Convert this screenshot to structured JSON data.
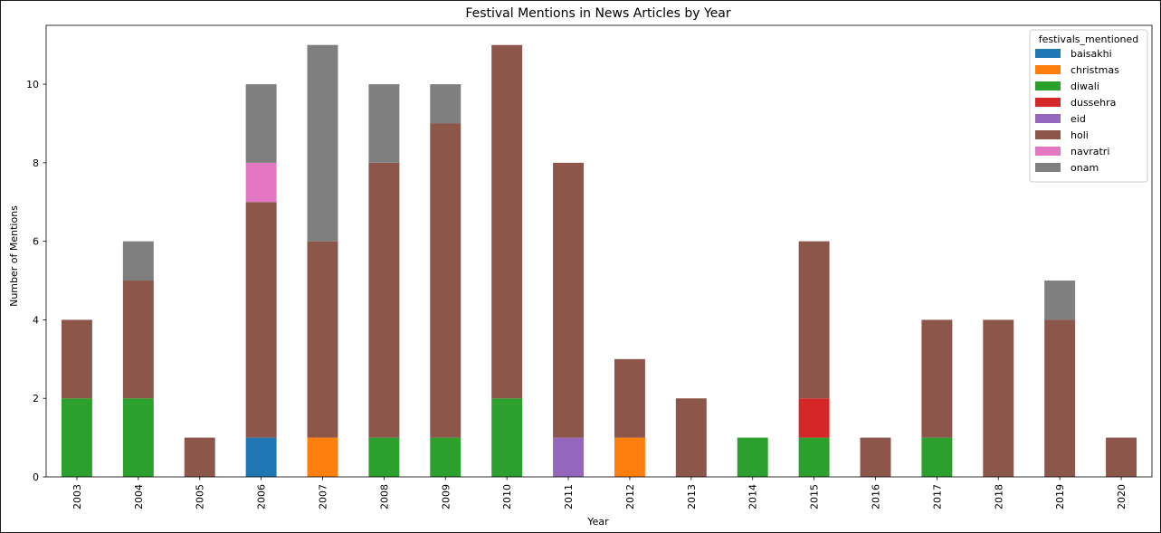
{
  "chart_data": {
    "type": "bar",
    "stacked": true,
    "title": "Festival Mentions in News Articles by Year",
    "xlabel": "Year",
    "ylabel": "Number of Mentions",
    "ylim": [
      0,
      11.5
    ],
    "yticks": [
      0,
      2,
      4,
      6,
      8,
      10
    ],
    "grid": false,
    "legend": {
      "title": "festivals_mentioned",
      "placement": "top-right"
    },
    "categories": [
      "2003",
      "2004",
      "2005",
      "2006",
      "2007",
      "2008",
      "2009",
      "2010",
      "2011",
      "2012",
      "2013",
      "2014",
      "2015",
      "2016",
      "2017",
      "2018",
      "2019",
      "2020"
    ],
    "series": [
      {
        "name": "baisakhi",
        "color": "#1f77b4",
        "values": [
          0,
          0,
          0,
          1,
          0,
          0,
          0,
          0,
          0,
          0,
          0,
          0,
          0,
          0,
          0,
          0,
          0,
          0
        ]
      },
      {
        "name": "christmas",
        "color": "#ff7f0e",
        "values": [
          0,
          0,
          0,
          0,
          1,
          0,
          0,
          0,
          0,
          1,
          0,
          0,
          0,
          0,
          0,
          0,
          0,
          0
        ]
      },
      {
        "name": "diwali",
        "color": "#2ca02c",
        "values": [
          2,
          2,
          0,
          0,
          0,
          1,
          1,
          2,
          0,
          0,
          0,
          1,
          1,
          0,
          1,
          0,
          0,
          0
        ]
      },
      {
        "name": "dussehra",
        "color": "#d62728",
        "values": [
          0,
          0,
          0,
          0,
          0,
          0,
          0,
          0,
          0,
          0,
          0,
          0,
          1,
          0,
          0,
          0,
          0,
          0
        ]
      },
      {
        "name": "eid",
        "color": "#9467bd",
        "values": [
          0,
          0,
          0,
          0,
          0,
          0,
          0,
          0,
          1,
          0,
          0,
          0,
          0,
          0,
          0,
          0,
          0,
          0
        ]
      },
      {
        "name": "holi",
        "color": "#8c564b",
        "values": [
          2,
          3,
          1,
          6,
          5,
          7,
          8,
          9,
          7,
          2,
          2,
          0,
          4,
          1,
          3,
          4,
          4,
          1
        ]
      },
      {
        "name": "navratri",
        "color": "#e377c2",
        "values": [
          0,
          0,
          0,
          1,
          0,
          0,
          0,
          0,
          0,
          0,
          0,
          0,
          0,
          0,
          0,
          0,
          0,
          0
        ]
      },
      {
        "name": "onam",
        "color": "#7f7f7f",
        "values": [
          0,
          1,
          0,
          2,
          5,
          2,
          1,
          0,
          0,
          0,
          0,
          0,
          0,
          0,
          0,
          0,
          1,
          0
        ]
      }
    ]
  }
}
